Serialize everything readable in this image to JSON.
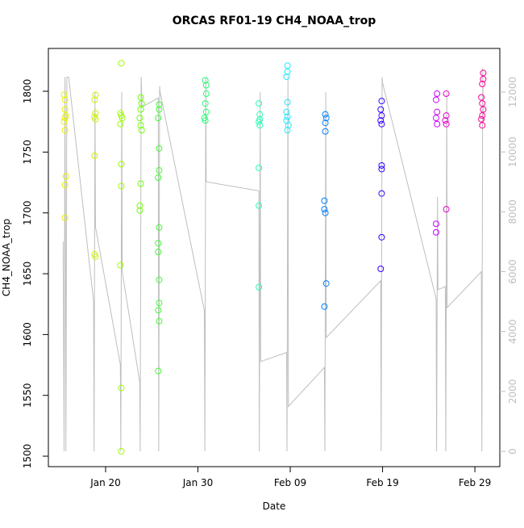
{
  "chart_data": {
    "type": "scatter",
    "title": "ORCAS RF01-19 CH4_NOAA_trop",
    "x_label": "Date",
    "y_label": "CH4_NOAA_trop",
    "xlim": [
      13.8,
      62.7
    ],
    "ylim": [
      1491.4,
      1835.2
    ],
    "y2lim": [
      -512,
      13456
    ],
    "xticks": [
      {
        "value": 20,
        "label": "Jan 20"
      },
      {
        "value": 30,
        "label": "Jan 30"
      },
      {
        "value": 40,
        "label": "Feb 09"
      },
      {
        "value": 50,
        "label": "Feb 19"
      },
      {
        "value": 60,
        "label": "Feb 29"
      }
    ],
    "yticks": [
      1500,
      1550,
      1600,
      1650,
      1700,
      1750,
      1800
    ],
    "y2ticks": [
      0,
      2000,
      4000,
      6000,
      8000,
      10000,
      12000
    ],
    "series": [
      {
        "color": "#E6F000",
        "x": [
          15.5,
          15.6,
          15.6,
          15.7,
          15.6,
          15.5,
          15.6,
          15.7,
          15.6,
          15.6
        ],
        "values": [
          1797,
          1793,
          1785,
          1780,
          1778,
          1775,
          1768,
          1730,
          1723,
          1696
        ]
      },
      {
        "color": "#C8F500",
        "x": [
          18.9,
          18.8,
          18.9,
          18.8,
          18.9,
          18.8,
          18.8,
          18.9
        ],
        "values": [
          1797,
          1793,
          1782,
          1779,
          1777,
          1747,
          1666,
          1664
        ]
      },
      {
        "color": "#9BFF00",
        "x": [
          21.7,
          21.6,
          21.7,
          21.8,
          21.6,
          21.7,
          21.7,
          21.6,
          21.7,
          21.7
        ],
        "values": [
          1823,
          1782,
          1780,
          1778,
          1773,
          1740,
          1722,
          1657,
          1556,
          1504
        ]
      },
      {
        "color": "#6EFF00",
        "x": [
          23.8,
          23.9,
          23.8,
          23.7,
          23.8,
          23.9,
          23.8,
          23.7,
          23.7
        ],
        "values": [
          1795,
          1790,
          1785,
          1778,
          1772,
          1768,
          1724,
          1706,
          1702
        ]
      },
      {
        "color": "#3FFF30",
        "x": [
          25.8,
          25.8,
          25.7,
          25.8,
          25.8,
          25.7,
          25.8,
          25.7,
          25.7,
          25.8,
          25.8,
          25.7,
          25.8,
          25.7
        ],
        "values": [
          1789,
          1785,
          1778,
          1753,
          1735,
          1729,
          1688,
          1675,
          1668,
          1645,
          1626,
          1620,
          1611,
          1570
        ]
      },
      {
        "color": "#20FF70",
        "x": [
          30.8,
          30.9,
          30.9,
          30.8,
          30.9,
          30.7,
          30.8
        ],
        "values": [
          1809,
          1805,
          1798,
          1790,
          1783,
          1778,
          1776
        ]
      },
      {
        "color": "#20FFB0",
        "x": [
          36.6,
          36.7,
          36.7,
          36.6,
          36.7,
          36.6,
          36.6,
          36.6
        ],
        "values": [
          1790,
          1781,
          1777,
          1775,
          1772,
          1737,
          1706,
          1639
        ]
      },
      {
        "color": "#20E8FF",
        "x": [
          39.7,
          39.7,
          39.6,
          39.7,
          39.6,
          39.7,
          39.6,
          39.8,
          39.7
        ],
        "values": [
          1821,
          1816,
          1812,
          1791,
          1783,
          1779,
          1776,
          1772,
          1768
        ]
      },
      {
        "color": "#0080FF",
        "x": [
          43.8,
          43.9,
          43.8,
          43.8,
          43.7,
          43.7,
          43.8,
          43.9,
          43.7
        ],
        "values": [
          1781,
          1778,
          1774,
          1767,
          1710,
          1703,
          1700,
          1642,
          1623
        ]
      },
      {
        "color": "#3300FF",
        "x": [
          49.9,
          49.8,
          49.9,
          49.8,
          49.9,
          49.9,
          49.9,
          49.9,
          49.9,
          49.8
        ],
        "values": [
          1792,
          1785,
          1780,
          1776,
          1773,
          1739,
          1736,
          1716,
          1680,
          1654
        ]
      },
      {
        "color": "#CC00FF",
        "x": [
          55.9,
          55.8,
          55.9,
          55.8,
          55.9,
          55.8,
          55.8
        ],
        "values": [
          1798,
          1793,
          1783,
          1778,
          1773,
          1691,
          1684
        ]
      },
      {
        "color": "#E600CC",
        "x": [
          56.9,
          56.9,
          56.8,
          56.9,
          56.9
        ],
        "values": [
          1798,
          1780,
          1776,
          1773,
          1703
        ]
      },
      {
        "color": "#FF0099",
        "x": [
          60.9,
          60.9,
          60.8,
          60.7,
          60.8,
          60.9,
          60.8,
          60.7,
          60.8
        ],
        "values": [
          1815,
          1810,
          1806,
          1795,
          1790,
          1785,
          1780,
          1777,
          1772
        ]
      },
      {
        "color": "#BEBEBE",
        "mode": "line",
        "axis": "y2",
        "x": [
          15.4,
          15.5,
          15.6,
          15.7,
          15.8,
          16.0,
          18.7,
          18.75,
          18.85,
          18.9,
          21.6,
          21.65,
          21.75,
          21.8,
          23.7,
          23.75,
          23.85,
          23.95,
          25.7,
          25.75,
          25.85,
          25.9,
          30.7,
          30.75,
          30.85,
          30.9,
          36.6,
          36.65,
          36.75,
          36.8,
          39.6,
          39.65,
          39.75,
          39.8,
          43.7,
          43.75,
          43.85,
          43.9,
          49.8,
          49.85,
          49.95,
          50.0,
          55.8,
          55.85,
          55.95,
          56.0,
          56.8,
          56.85,
          56.95,
          57.0,
          60.7,
          60.75,
          60.85,
          60.9
        ],
        "values": [
          7000,
          0,
          12500,
          0,
          12500,
          12500,
          5000,
          0,
          12000,
          7500,
          2900,
          0,
          12000,
          6000,
          2300,
          0,
          12500,
          11500,
          11800,
          0,
          12200,
          12000,
          4700,
          0,
          12500,
          9000,
          8700,
          0,
          12000,
          3000,
          3300,
          0,
          12500,
          1500,
          2800,
          0,
          12000,
          3800,
          5700,
          0,
          12500,
          12300,
          5100,
          0,
          8500,
          5400,
          5500,
          0,
          12000,
          4800,
          6000,
          0,
          12800,
          11000
        ]
      }
    ]
  }
}
